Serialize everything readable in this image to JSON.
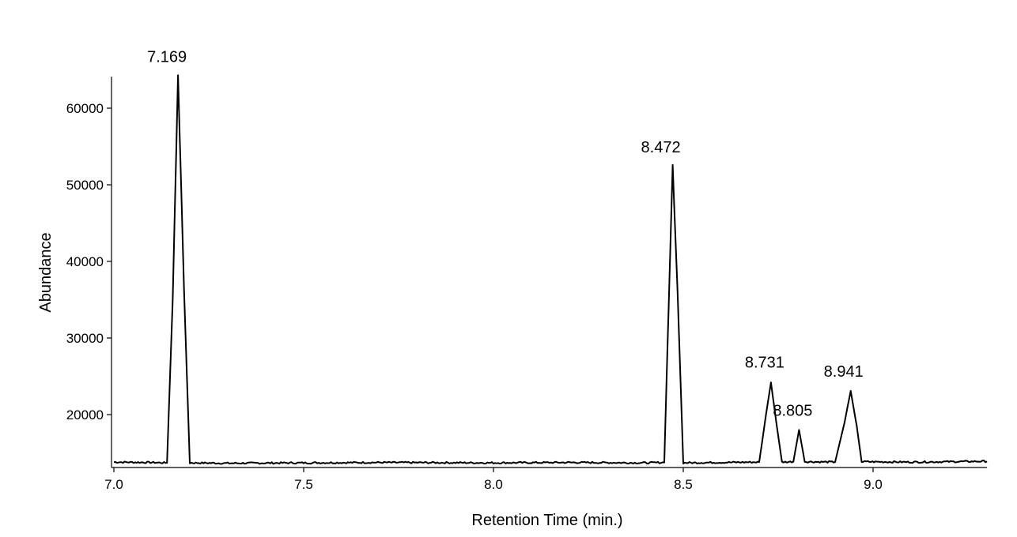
{
  "chart_data": {
    "type": "line",
    "title": "",
    "xlabel": "Retention Time (min.)",
    "ylabel": "Abundance",
    "xlim": [
      7.0,
      9.3
    ],
    "ylim": [
      13100,
      64300
    ],
    "grid": false,
    "legend": "none",
    "x_ticks": [
      {
        "value": 7.0,
        "label": "7.0"
      },
      {
        "value": 7.5,
        "label": "7.5"
      },
      {
        "value": 8.0,
        "label": "8.0"
      },
      {
        "value": 8.5,
        "label": "8.5"
      },
      {
        "value": 9.0,
        "label": "9.0"
      }
    ],
    "y_ticks": [
      {
        "value": 20000,
        "label": "20000"
      },
      {
        "value": 30000,
        "label": "30000"
      },
      {
        "value": 40000,
        "label": "40000"
      },
      {
        "value": 50000,
        "label": "50000"
      },
      {
        "value": 60000,
        "label": "60000"
      }
    ],
    "series": [
      {
        "color": "#000000",
        "x": [
          7.0,
          7.1,
          7.14,
          7.155,
          7.169,
          7.185,
          7.2,
          7.3,
          7.5,
          7.7,
          8.0,
          8.2,
          8.4,
          8.45,
          8.462,
          8.472,
          8.485,
          8.5,
          8.6,
          8.7,
          8.718,
          8.731,
          8.745,
          8.76,
          8.79,
          8.805,
          8.82,
          8.9,
          8.925,
          8.941,
          8.957,
          8.97,
          9.1,
          9.3
        ],
        "y": [
          13800,
          13750,
          13700,
          35000,
          64300,
          36000,
          13700,
          13650,
          13700,
          13750,
          13700,
          13750,
          13700,
          13750,
          35000,
          52600,
          36000,
          13700,
          13750,
          13800,
          20000,
          24200,
          19000,
          13800,
          13850,
          18000,
          13850,
          13800,
          19000,
          23100,
          18500,
          13850,
          13800,
          13900
        ]
      }
    ],
    "annotations": [
      {
        "x": 7.169,
        "y": 64300,
        "text": "7.169"
      },
      {
        "x": 8.472,
        "y": 52600,
        "text": "8.472"
      },
      {
        "x": 8.731,
        "y": 24200,
        "text": "8.731"
      },
      {
        "x": 8.805,
        "y": 18000,
        "text": "8.805"
      },
      {
        "x": 8.941,
        "y": 23100,
        "text": "8.941"
      }
    ]
  }
}
